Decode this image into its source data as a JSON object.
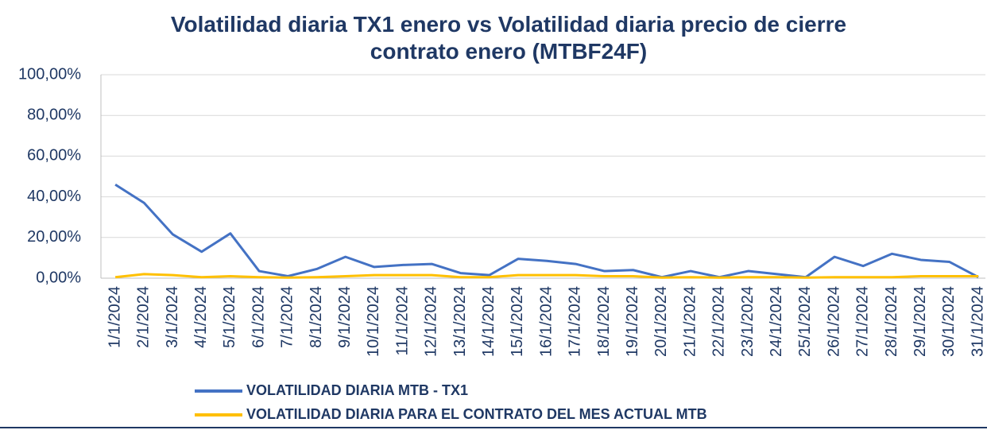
{
  "chart_data": {
    "type": "line",
    "title": "Volatilidad diaria TX1 enero vs Volatilidad diaria precio de cierre contrato enero (MTBF24F)",
    "categories": [
      "1/1/2024",
      "2/1/2024",
      "3/1/2024",
      "4/1/2024",
      "5/1/2024",
      "6/1/2024",
      "7/1/2024",
      "8/1/2024",
      "9/1/2024",
      "10/1/2024",
      "11/1/2024",
      "12/1/2024",
      "13/1/2024",
      "14/1/2024",
      "15/1/2024",
      "16/1/2024",
      "17/1/2024",
      "18/1/2024",
      "19/1/2024",
      "20/1/2024",
      "21/1/2024",
      "22/1/2024",
      "23/1/2024",
      "24/1/2024",
      "25/1/2024",
      "26/1/2024",
      "27/1/2024",
      "28/1/2024",
      "29/1/2024",
      "30/1/2024",
      "31/1/2024"
    ],
    "series": [
      {
        "name": "VOLATILIDAD DIARIA MTB - TX1",
        "color": "#4472c4",
        "values": [
          46,
          37,
          21.5,
          13,
          22,
          3.5,
          1,
          4.5,
          10.5,
          5.5,
          6.5,
          7,
          2.5,
          1.5,
          9.5,
          8.5,
          7,
          3.5,
          4,
          0.5,
          3.5,
          0.5,
          3.5,
          2,
          0.5,
          10.5,
          6,
          12,
          9,
          8,
          0.5
        ]
      },
      {
        "name": "VOLATILIDAD DIARIA PARA EL CONTRATO DEL MES ACTUAL MTB",
        "color": "#ffc000",
        "values": [
          0.5,
          2,
          1.5,
          0.5,
          1,
          0.5,
          0.3,
          0.5,
          1,
          1.5,
          1.5,
          1.5,
          0.5,
          0.5,
          1.5,
          1.5,
          1.5,
          1,
          1,
          0.3,
          0.5,
          0.3,
          0.5,
          0.5,
          0.3,
          0.5,
          0.5,
          0.5,
          1,
          1,
          1
        ]
      }
    ],
    "ylim": [
      0,
      100
    ],
    "yticks": [
      {
        "value": 0,
        "label": "0,00%"
      },
      {
        "value": 20,
        "label": "20,00%"
      },
      {
        "value": 40,
        "label": "40,00%"
      },
      {
        "value": 60,
        "label": "60,00%"
      },
      {
        "value": 80,
        "label": "80,00%"
      },
      {
        "value": 100,
        "label": "100,00%"
      }
    ],
    "grid": true
  }
}
